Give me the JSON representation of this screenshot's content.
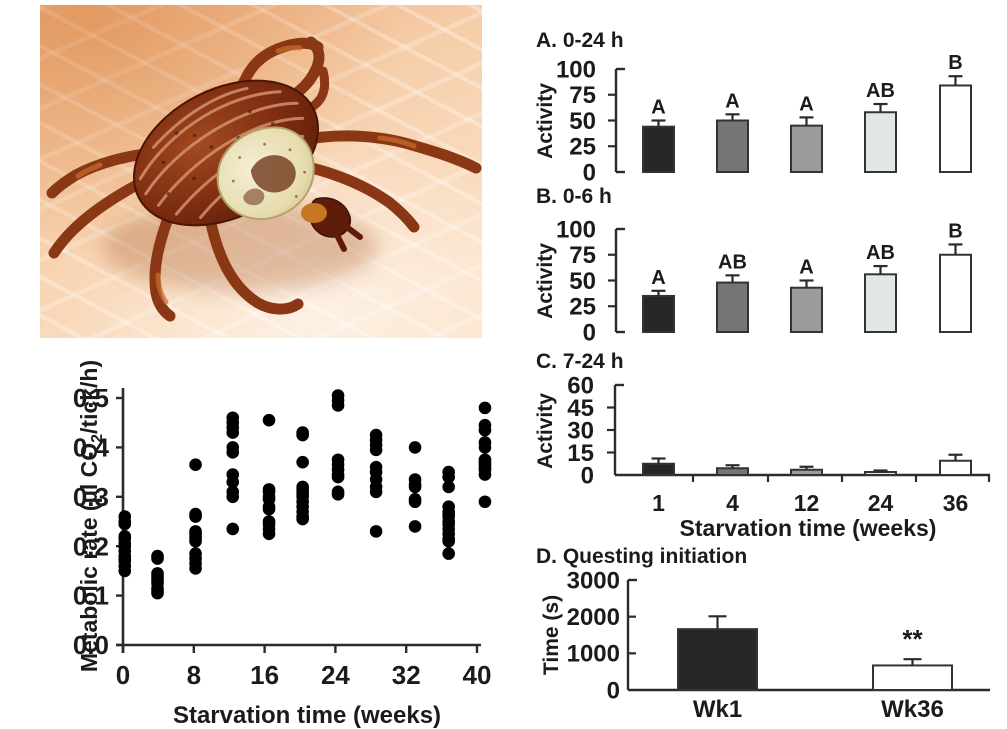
{
  "photo": {
    "description": "Close-up photograph of a reddish-brown dog tick with a cream ornate scutum crawling on human skin",
    "colors": {
      "skin_top": "#edac7c",
      "skin_mid": "#f6cda8",
      "skin_bottom": "#fbe3ca",
      "tick_body": "#7a2b10",
      "tick_scutum": "#e6dcae",
      "tick_legs": "#8a3715",
      "tick_mouthpart": "#c57722"
    }
  },
  "chart_data": [
    {
      "id": "activity_0_24",
      "type": "bar",
      "title": "A. 0-24 h",
      "ylabel": "Activity",
      "ylim": [
        0,
        100
      ],
      "yticks": [
        0,
        25,
        50,
        75,
        100
      ],
      "ytick_labels": [
        "0",
        "25",
        "50",
        "75",
        "100"
      ],
      "categories": [
        "1",
        "4",
        "12",
        "24",
        "36"
      ],
      "values": [
        44,
        50,
        45,
        58,
        84
      ],
      "errors": [
        6,
        6,
        8,
        8,
        9
      ],
      "sig_labels": [
        "A",
        "A",
        "A",
        "AB",
        "B"
      ],
      "bar_colors": [
        "#262626",
        "#757575",
        "#9c9c9c",
        "#e4e8e5",
        "#ffffff"
      ],
      "show_categories": false
    },
    {
      "id": "activity_0_6",
      "type": "bar",
      "title": "B. 0-6 h",
      "ylabel": "Activity",
      "ylim": [
        0,
        100
      ],
      "yticks": [
        0,
        25,
        50,
        75,
        100
      ],
      "ytick_labels": [
        "0",
        "25",
        "50",
        "75",
        "100"
      ],
      "categories": [
        "1",
        "4",
        "12",
        "24",
        "36"
      ],
      "values": [
        35,
        48,
        43,
        56,
        75
      ],
      "errors": [
        5,
        7,
        7,
        8,
        10
      ],
      "sig_labels": [
        "A",
        "AB",
        "A",
        "AB",
        "B"
      ],
      "bar_colors": [
        "#262626",
        "#757575",
        "#9c9c9c",
        "#e4e8e5",
        "#ffffff"
      ],
      "show_categories": false
    },
    {
      "id": "activity_7_24",
      "type": "bar",
      "title": "C. 7-24 h",
      "ylabel": "Activity",
      "xlabel": "Starvation time (weeks)",
      "ylim": [
        0,
        60
      ],
      "yticks": [
        0,
        15,
        30,
        45,
        60
      ],
      "ytick_labels": [
        "0",
        "15",
        "30",
        "45",
        "60"
      ],
      "categories": [
        "1",
        "4",
        "12",
        "24",
        "36"
      ],
      "values": [
        7.5,
        4.5,
        3.5,
        2,
        9.5
      ],
      "errors": [
        3.5,
        2,
        2,
        1,
        4
      ],
      "sig_labels": null,
      "bar_colors": [
        "#262626",
        "#757575",
        "#9c9c9c",
        "#e4e8e5",
        "#ffffff"
      ],
      "show_categories": true
    },
    {
      "id": "questing",
      "type": "bar",
      "title": "D. Questing initiation",
      "ylabel": "Time (s)",
      "ylim": [
        0,
        3000
      ],
      "yticks": [
        0,
        1000,
        2000,
        3000
      ],
      "ytick_labels": [
        "0",
        "1000",
        "2000",
        "3000"
      ],
      "categories": [
        "Wk1",
        "Wk36"
      ],
      "values": [
        1660,
        670
      ],
      "errors": [
        350,
        170
      ],
      "sig_labels": null,
      "annotations": [
        {
          "bar": 1,
          "text": "**"
        }
      ],
      "bar_colors": [
        "#262626",
        "#ffffff"
      ],
      "show_categories": true
    },
    {
      "id": "metabolic_rate",
      "type": "scatter",
      "xlabel": "Starvation time (weeks)",
      "ylabel_parts": {
        "prefix": "Metabolic rate (µl CO",
        "sub": "2",
        "suffix": "/tick/h)"
      },
      "xlim": [
        0,
        42
      ],
      "ylim": [
        0,
        0.52
      ],
      "xticks": [
        0,
        8,
        16,
        24,
        32,
        40
      ],
      "xtick_labels": [
        "0",
        "8",
        "16",
        "24",
        "32",
        "40"
      ],
      "yticks": [
        0,
        0.1,
        0.2,
        0.3,
        0.4,
        0.5
      ],
      "ytick_labels": [
        "0.0",
        "0.1",
        "0.2",
        "0.3",
        "0.4",
        "0.5"
      ],
      "point_color": "#000000",
      "clusters": [
        {
          "x": 0.2,
          "ys": [
            0.26,
            0.25,
            0.245,
            0.22,
            0.215,
            0.205,
            0.2,
            0.19,
            0.18,
            0.175,
            0.17,
            0.16,
            0.15
          ]
        },
        {
          "x": 3.9,
          "ys": [
            0.18,
            0.175,
            0.145,
            0.14,
            0.135,
            0.13,
            0.125,
            0.115,
            0.11,
            0.105
          ]
        },
        {
          "x": 8.2,
          "ys": [
            0.365,
            0.265,
            0.26,
            0.23,
            0.225,
            0.22,
            0.215,
            0.21,
            0.185,
            0.175,
            0.165,
            0.155
          ]
        },
        {
          "x": 12.4,
          "ys": [
            0.46,
            0.45,
            0.44,
            0.43,
            0.4,
            0.39,
            0.345,
            0.33,
            0.31,
            0.3,
            0.235
          ]
        },
        {
          "x": 16.5,
          "ys": [
            0.455,
            0.315,
            0.31,
            0.3,
            0.295,
            0.28,
            0.275,
            0.25,
            0.245,
            0.235,
            0.225
          ]
        },
        {
          "x": 20.3,
          "ys": [
            0.43,
            0.425,
            0.37,
            0.32,
            0.315,
            0.31,
            0.305,
            0.3,
            0.29,
            0.28,
            0.27,
            0.26,
            0.255
          ]
        },
        {
          "x": 24.3,
          "ys": [
            0.505,
            0.495,
            0.485,
            0.375,
            0.365,
            0.355,
            0.345,
            0.34,
            0.31,
            0.305
          ]
        },
        {
          "x": 28.6,
          "ys": [
            0.425,
            0.415,
            0.405,
            0.395,
            0.36,
            0.35,
            0.335,
            0.32,
            0.31,
            0.23
          ]
        },
        {
          "x": 33.0,
          "ys": [
            0.4,
            0.335,
            0.325,
            0.32,
            0.295,
            0.29,
            0.24
          ]
        },
        {
          "x": 36.8,
          "ys": [
            0.35,
            0.34,
            0.32,
            0.28,
            0.27,
            0.265,
            0.26,
            0.25,
            0.245,
            0.235,
            0.225,
            0.215,
            0.21,
            0.185
          ]
        },
        {
          "x": 40.9,
          "ys": [
            0.48,
            0.445,
            0.435,
            0.41,
            0.4,
            0.375,
            0.37,
            0.365,
            0.36,
            0.355,
            0.345,
            0.29
          ]
        }
      ]
    }
  ]
}
